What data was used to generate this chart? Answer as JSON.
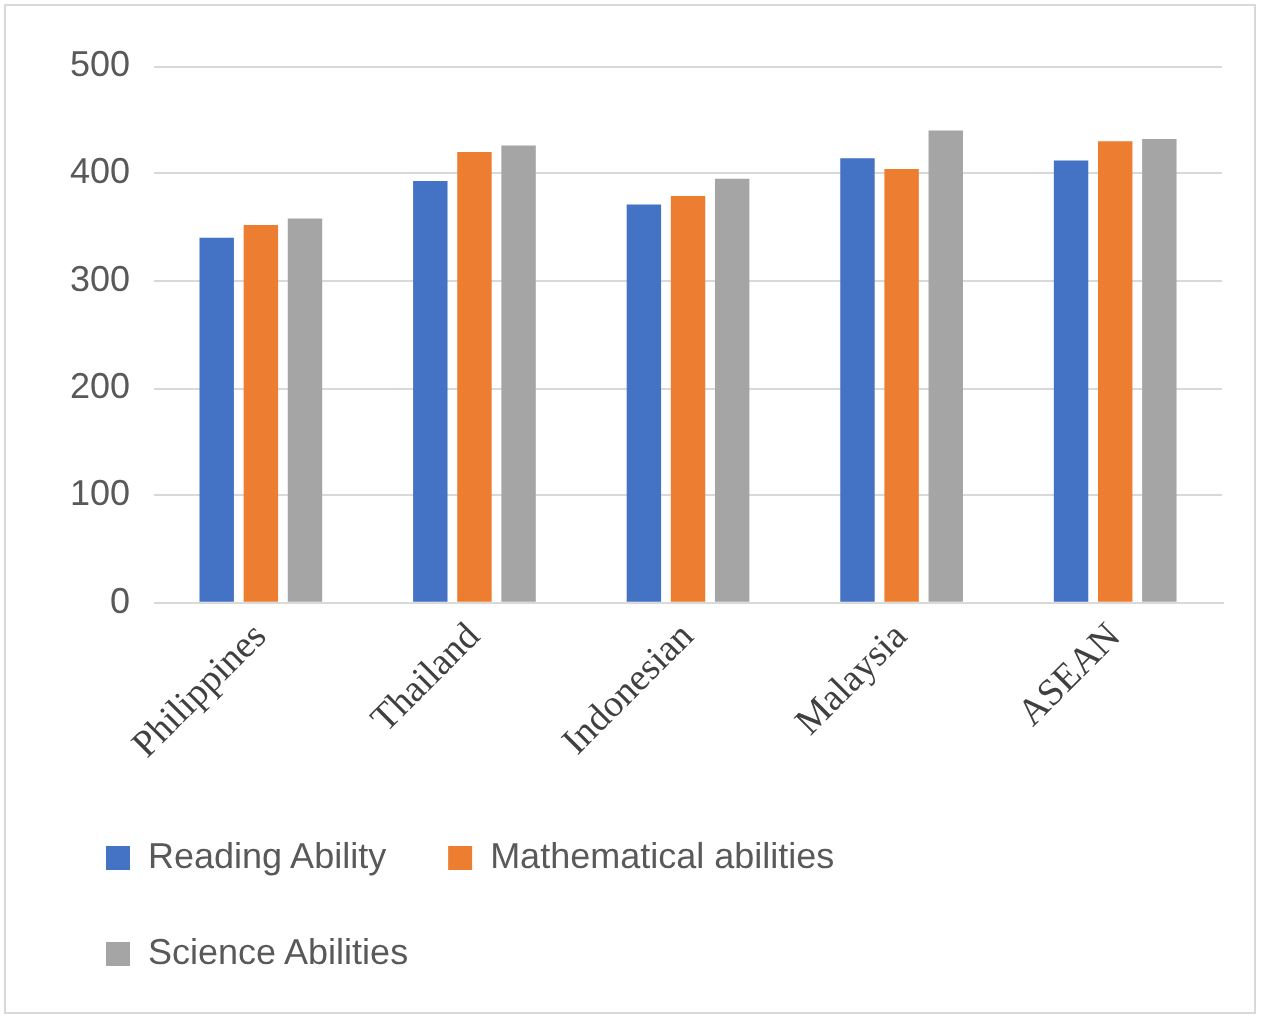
{
  "chart_data": {
    "type": "bar",
    "categories": [
      "Philippines",
      "Thailand",
      "Indonesian",
      "Malaysia",
      "ASEAN"
    ],
    "series": [
      {
        "name": "Reading Ability",
        "color": "#4472c4",
        "values": [
          340,
          393,
          371,
          414,
          412
        ]
      },
      {
        "name": "Mathematical abilities",
        "color": "#ed7d31",
        "values": [
          352,
          420,
          379,
          404,
          430
        ]
      },
      {
        "name": "Science Abilities",
        "color": "#a5a5a5",
        "values": [
          358,
          426,
          395,
          440,
          432
        ]
      }
    ],
    "ylim": [
      0,
      500
    ],
    "yticks": [
      0,
      100,
      200,
      300,
      400,
      500
    ],
    "grid": "y",
    "legend": "bottom"
  }
}
